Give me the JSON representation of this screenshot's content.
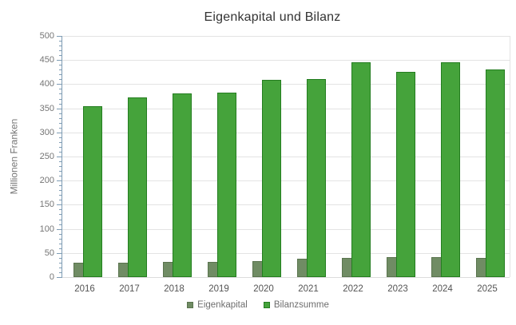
{
  "chart_data": {
    "type": "bar",
    "title": "Eigenkapital und Bilanz",
    "xlabel": "",
    "ylabel": "Millionen Franken",
    "categories": [
      "2016",
      "2017",
      "2018",
      "2019",
      "2020",
      "2021",
      "2022",
      "2023",
      "2024",
      "2025"
    ],
    "series": [
      {
        "name": "Eigenkapital",
        "values": [
          30,
          30,
          31,
          32,
          33,
          38,
          40,
          41,
          41,
          39
        ],
        "fill": "#708c64",
        "border": "#5a744e"
      },
      {
        "name": "Bilanzsumme",
        "values": [
          355,
          372,
          381,
          383,
          409,
          411,
          445,
          426,
          445,
          430
        ],
        "fill": "#45a33b",
        "border": "#247d20"
      }
    ],
    "ylim": [
      0,
      500
    ],
    "ytick_step": 50,
    "y_minor_tick_step": 10,
    "grid": true,
    "legend_position": "bottom"
  },
  "colors": {
    "gridline": "#e3e3e3",
    "axis": "#7e9cb4",
    "title_text": "#333333",
    "axis_label_text": "#757575",
    "x_label_text": "#545454",
    "background": "#ffffff"
  }
}
